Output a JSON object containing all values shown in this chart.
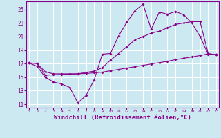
{
  "background_color": "#cce8f0",
  "grid_color": "#ffffff",
  "line_color": "#880088",
  "xlabel": "Windchill (Refroidissement éolien,°C)",
  "xlabel_fontsize": 6.5,
  "yticks": [
    11,
    13,
    15,
    17,
    19,
    21,
    23,
    25
  ],
  "xticks": [
    0,
    1,
    2,
    3,
    4,
    5,
    6,
    7,
    8,
    9,
    10,
    11,
    12,
    13,
    14,
    15,
    16,
    17,
    18,
    19,
    20,
    21,
    22,
    23
  ],
  "xlim": [
    -0.3,
    23.3
  ],
  "ylim": [
    10.5,
    26.2
  ],
  "line1_x": [
    0,
    1,
    2,
    3,
    4,
    5,
    6,
    7,
    8,
    9,
    10,
    11,
    12,
    13,
    14,
    15,
    16,
    17,
    18,
    19,
    20,
    21,
    22,
    23
  ],
  "line1_y": [
    17.1,
    16.6,
    15.0,
    14.3,
    14.0,
    13.5,
    11.2,
    12.3,
    14.6,
    18.4,
    18.5,
    21.1,
    23.1,
    24.8,
    25.8,
    22.1,
    24.6,
    24.3,
    24.7,
    24.2,
    23.0,
    21.0,
    18.4,
    18.3
  ],
  "line2_x": [
    0,
    1,
    2,
    3,
    4,
    5,
    6,
    7,
    8,
    9,
    10,
    11,
    12,
    13,
    14,
    15,
    16,
    17,
    18,
    19,
    20,
    21,
    22,
    23
  ],
  "line2_y": [
    17.1,
    17.0,
    15.8,
    15.5,
    15.5,
    15.5,
    15.5,
    15.7,
    15.9,
    16.4,
    17.5,
    18.5,
    19.5,
    20.5,
    21.0,
    21.5,
    21.8,
    22.3,
    22.8,
    23.0,
    23.2,
    23.2,
    18.5,
    18.3
  ],
  "line3_x": [
    0,
    1,
    2,
    3,
    4,
    5,
    6,
    7,
    8,
    9,
    10,
    11,
    12,
    13,
    14,
    15,
    16,
    17,
    18,
    19,
    20,
    21,
    22,
    23
  ],
  "line3_y": [
    17.1,
    17.05,
    15.3,
    15.35,
    15.4,
    15.45,
    15.5,
    15.55,
    15.65,
    15.75,
    15.95,
    16.15,
    16.35,
    16.55,
    16.75,
    16.95,
    17.15,
    17.35,
    17.6,
    17.8,
    18.0,
    18.2,
    18.45,
    18.3
  ]
}
